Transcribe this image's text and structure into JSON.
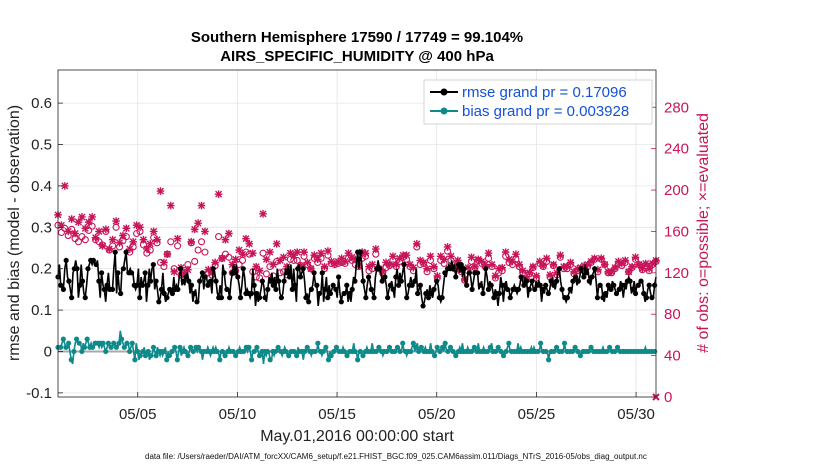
{
  "chart_data": {
    "type": "line",
    "title_line1": "Southern Hemisphere 17590 / 17749 = 99.104%",
    "title_line2": "AIRS_SPECIFIC_HUMIDITY @ 400 hPa",
    "xlabel": "May.01,2016 00:00:00 start",
    "ylabel_left": "rmse and bias (model - observation)",
    "ylabel_right": "# of obs: o=possible; ×=evaluated",
    "footer": "data file: /Users/raeder/DAI/ATM_forcXX/CAM6_setup/f.e21.FHIST_BGC.f09_025.CAM6assim.011/Diags_NTrS_2016-05/obs_diag_output.nc",
    "xticks": [
      "05/05",
      "05/10",
      "05/15",
      "05/20",
      "05/25",
      "05/30"
    ],
    "xtick_days": [
      5,
      10,
      15,
      20,
      25,
      30
    ],
    "xlim": [
      1.0,
      31.0
    ],
    "ylim_left": [
      -0.11,
      0.68
    ],
    "yticks_left": [
      "-0.1",
      "0",
      "0.1",
      "0.2",
      "0.3",
      "0.4",
      "0.5",
      "0.6"
    ],
    "ylim_right": [
      0,
      316
    ],
    "yticks_right": [
      "0",
      "40",
      "80",
      "120",
      "160",
      "200",
      "240",
      "280"
    ],
    "grid": true,
    "legend_position": "top-right",
    "series": [
      {
        "name": "rmse grand pr = 0.17096",
        "color": "#000000",
        "values": [
          0.18,
          0.21,
          0.16,
          0.16,
          0.15,
          0.2,
          0.22,
          0.18,
          0.17,
          0.15,
          0.13,
          0.19,
          0.2,
          0.22,
          0.2,
          0.13,
          0.16,
          0.21,
          0.17,
          0.14,
          0.13,
          0.16,
          0.2,
          0.21,
          0.22,
          0.21,
          0.22,
          0.21,
          0.21,
          0.22,
          0.17,
          0.13,
          0.19,
          0.16,
          0.15,
          0.12,
          0.16,
          0.19,
          0.15,
          0.15,
          0.15,
          0.2,
          0.24,
          0.14,
          0.19,
          0.15,
          0.14,
          0.2,
          0.2,
          0.22,
          0.24,
          0.19,
          0.19,
          0.2,
          0.19,
          0.19,
          0.16,
          0.15,
          0.16,
          0.2,
          0.13,
          0.18,
          0.16,
          0.17,
          0.19,
          0.12,
          0.16,
          0.2,
          0.17,
          0.2,
          0.21,
          0.15,
          0.17,
          0.15,
          0.12,
          0.13,
          0.15,
          0.19,
          0.14,
          0.12,
          0.13,
          0.14,
          0.15,
          0.14,
          0.14,
          0.18,
          0.15,
          0.16,
          0.15,
          0.18,
          0.2,
          0.16,
          0.17,
          0.16,
          0.18,
          0.19,
          0.17,
          0.14,
          0.16,
          0.12,
          0.14,
          0.15,
          0.12,
          0.12,
          0.17,
          0.18,
          0.19,
          0.15,
          0.18,
          0.18,
          0.16,
          0.17,
          0.17,
          0.14,
          0.2,
          0.19,
          0.17,
          0.14,
          0.13,
          0.16,
          0.13,
          0.21,
          0.19,
          0.16,
          0.15,
          0.15,
          0.13,
          0.17,
          0.19,
          0.21,
          0.19,
          0.21,
          0.18,
          0.16,
          0.13,
          0.16,
          0.2,
          0.18,
          0.14,
          0.15,
          0.14,
          0.13,
          0.14,
          0.2,
          0.16,
          0.11,
          0.14,
          0.12,
          0.13,
          0.15,
          0.17,
          0.16,
          0.13,
          0.12,
          0.15,
          0.18,
          0.17,
          0.19,
          0.16,
          0.18,
          0.15,
          0.2,
          0.17,
          0.14,
          0.13,
          0.14,
          0.17,
          0.2,
          0.19,
          0.21,
          0.18,
          0.21,
          0.15,
          0.2,
          0.16,
          0.12,
          0.2,
          0.21,
          0.18,
          0.19,
          0.2,
          0.17,
          0.13,
          0.14,
          0.12,
          0.15,
          0.15,
          0.16,
          0.19,
          0.16,
          0.16,
          0.11,
          0.14,
          0.14,
          0.19,
          0.12,
          0.15,
          0.18,
          0.13,
          0.16,
          0.14,
          0.15,
          0.16,
          0.15,
          0.15,
          0.13,
          0.18,
          0.14,
          0.12,
          0.14,
          0.14,
          0.14,
          0.16,
          0.12,
          0.14,
          0.12,
          0.15,
          0.18,
          0.17,
          0.21,
          0.24,
          0.2,
          0.24,
          0.21,
          0.17,
          0.15,
          0.13,
          0.16,
          0.18,
          0.17,
          0.15,
          0.14,
          0.13,
          0.18,
          0.2,
          0.22,
          0.2,
          0.19,
          0.17,
          0.18,
          0.18,
          0.16,
          0.13,
          0.15,
          0.16,
          0.17,
          0.15,
          0.13,
          0.18,
          0.2,
          0.16,
          0.19,
          0.17,
          0.19,
          0.21,
          0.16,
          0.13,
          0.14,
          0.16,
          0.18,
          0.16,
          0.16,
          0.17,
          0.2,
          0.14,
          0.15,
          0.16,
          0.13,
          0.11,
          0.12,
          0.14,
          0.15,
          0.13,
          0.16,
          0.14,
          0.13,
          0.15,
          0.16,
          0.17,
          0.16,
          0.13,
          0.12,
          0.13,
          0.16,
          0.19,
          0.18,
          0.2,
          0.21,
          0.2,
          0.22,
          0.2,
          0.21,
          0.18,
          0.2,
          0.21,
          0.19,
          0.21,
          0.18,
          0.2,
          0.17,
          0.16,
          0.19,
          0.19,
          0.18,
          0.15,
          0.17,
          0.19,
          0.19,
          0.19,
          0.15,
          0.16,
          0.17,
          0.14,
          0.16,
          0.2,
          0.18,
          0.15,
          0.17,
          0.16,
          0.15,
          0.13,
          0.15,
          0.14,
          0.11,
          0.14,
          0.18,
          0.16,
          0.12,
          0.16,
          0.17,
          0.15,
          0.15,
          0.13,
          0.14,
          0.15,
          0.16,
          0.15,
          0.14,
          0.15,
          0.16,
          0.18,
          0.17,
          0.16,
          0.18,
          0.17,
          0.13,
          0.15,
          0.16,
          0.17,
          0.15,
          0.15,
          0.17,
          0.16,
          0.17,
          0.16,
          0.12,
          0.15,
          0.14,
          0.16,
          0.15,
          0.14,
          0.15,
          0.17,
          0.18,
          0.16,
          0.15,
          0.17,
          0.19,
          0.2,
          0.17,
          0.15,
          0.13,
          0.13,
          0.12,
          0.13,
          0.14,
          0.15,
          0.14,
          0.17,
          0.18,
          0.18,
          0.16,
          0.17,
          0.18,
          0.2,
          0.19,
          0.18,
          0.21,
          0.19,
          0.2,
          0.17,
          0.16,
          0.18,
          0.19,
          0.2,
          0.17,
          0.13,
          0.16,
          0.16,
          0.16,
          0.13,
          0.12,
          0.14,
          0.13,
          0.16,
          0.15,
          0.15,
          0.17,
          0.16,
          0.15,
          0.14,
          0.14,
          0.15,
          0.17,
          0.16,
          0.13,
          0.16,
          0.15,
          0.17,
          0.18,
          0.17,
          0.14,
          0.15,
          0.17,
          0.14,
          0.16,
          0.16,
          0.17,
          0.17,
          0.17,
          0.14,
          0.12,
          0.13,
          0.15,
          0.16,
          0.14,
          0.13,
          0.13,
          0.16,
          0.18
        ]
      },
      {
        "name": "bias grand pr = 0.003928",
        "color": "#0e8a8a",
        "values": [
          0.01,
          0.01,
          0.01,
          0.02,
          0.03,
          0.02,
          0.01,
          0.01,
          0.02,
          0.0,
          -0.02,
          -0.03,
          0.0,
          0.02,
          0.03,
          0.02,
          0.02,
          0.02,
          0.0,
          0.02,
          0.01,
          0.02,
          0.03,
          0.02,
          0.01,
          0.02,
          0.01,
          0.01,
          0.02,
          0.02,
          0.02,
          0.01,
          0.02,
          0.01,
          0.02,
          0.01,
          0.0,
          0.01,
          0.02,
          0.01,
          0.01,
          0.01,
          0.02,
          0.02,
          0.01,
          0.01,
          0.02,
          0.05,
          0.03,
          0.02,
          0.01,
          0.01,
          0.02,
          0.02,
          0.0,
          0.01,
          0.02,
          0.0,
          -0.02,
          0.02,
          0.0,
          -0.02,
          -0.01,
          0.0,
          0.0,
          0.01,
          -0.01,
          0.0,
          0.0,
          -0.02,
          -0.01,
          -0.01,
          0.01,
          0.0,
          -0.01,
          0.01,
          0.0,
          -0.01,
          0.0,
          -0.01,
          0.0,
          0.01,
          -0.02,
          0.0,
          -0.01,
          -0.01,
          0.0,
          0.0,
          0.01,
          0.0,
          -0.02,
          0.0,
          0.01,
          -0.01,
          0.0,
          0.01,
          0.0,
          0.0,
          -0.01,
          0.0,
          0.01,
          0.0,
          0.0,
          0.0,
          0.01,
          0.0,
          0.01,
          0.0,
          0.0,
          -0.02,
          0.0,
          0.0,
          0.0,
          0.01,
          0.0,
          -0.01,
          0.0,
          0.01,
          0.0,
          0.01,
          0.0,
          0.0,
          -0.02,
          0.0,
          0.0,
          0.0,
          -0.01,
          0.0,
          0.0,
          0.01,
          0.0,
          0.0,
          0.0,
          0.0,
          -0.01,
          0.0,
          0.0,
          0.01,
          0.0,
          0.0,
          0.0,
          0.0,
          0.01,
          0.0,
          0.01,
          0.0,
          -0.02,
          0.0,
          0.0,
          0.0,
          0.01,
          0.0,
          -0.01,
          0.0,
          0.0,
          -0.03,
          0.0,
          -0.01,
          0.0,
          0.0,
          -0.02,
          -0.02,
          0.0,
          -0.01,
          0.0,
          0.0,
          0.01,
          0.0,
          0.0,
          -0.01,
          0.0,
          0.01,
          0.0,
          0.0,
          -0.01,
          0.0,
          0.0,
          0.0,
          0.0,
          0.0,
          -0.01,
          0.01,
          0.0,
          0.0,
          0.0,
          -0.02,
          0.0,
          0.0,
          0.01,
          0.0,
          0.0,
          -0.01,
          0.0,
          0.0,
          0.0,
          0.0,
          0.02,
          0.0,
          0.0,
          -0.01,
          0.0,
          0.0,
          0.01,
          0.0,
          -0.02,
          0.0,
          -0.01,
          0.0,
          0.0,
          0.0,
          0.01,
          0.0,
          0.0,
          0.0,
          0.0,
          0.01,
          0.0,
          0.0,
          -0.01,
          0.0,
          0.0,
          0.0,
          0.0,
          0.02,
          0.0,
          0.0,
          -0.02,
          0.0,
          0.0,
          0.0,
          -0.01,
          0.0,
          0.0,
          0.01,
          0.0,
          0.0,
          0.0,
          0.02,
          0.0,
          0.0,
          0.0,
          0.0,
          0.01,
          0.0,
          0.0,
          -0.01,
          0.0,
          0.0,
          0.0,
          0.0,
          0.01,
          0.0,
          0.0,
          0.0,
          0.0,
          0.0,
          0.01,
          0.01,
          0.0,
          0.0,
          0.02,
          0.0,
          0.0,
          -0.01,
          0.0,
          0.0,
          0.0,
          0.01,
          0.02,
          0.0,
          0.01,
          0.02,
          0.0,
          0.0,
          0.01,
          0.0,
          0.0,
          0.01,
          0.0,
          0.0,
          0.0,
          0.02,
          0.0,
          0.0,
          -0.01,
          0.0,
          0.01,
          0.0,
          0.0,
          0.0,
          0.01,
          0.0,
          0.02,
          0.0,
          0.0,
          0.0,
          0.01,
          0.0,
          0.0,
          0.0,
          -0.01,
          0.0,
          0.0,
          0.01,
          0.0,
          0.02,
          0.0,
          0.0,
          0.0,
          0.01,
          0.0,
          0.0,
          0.0,
          0.0,
          0.01,
          0.0,
          0.0,
          0.02,
          0.0,
          0.0,
          0.0,
          0.01,
          0.0,
          0.0,
          0.0,
          0.0,
          0.01,
          0.02,
          0.0,
          0.0,
          0.0,
          0.0,
          0.01,
          0.0,
          0.0,
          0.0,
          -0.01,
          0.0,
          0.0,
          0.01,
          0.02,
          0.0,
          0.0,
          0.0,
          0.0,
          0.0,
          0.0,
          0.02,
          0.0,
          0.01,
          0.0,
          0.0,
          0.0,
          0.0,
          0.0,
          0.0,
          0.0,
          0.01,
          0.0,
          0.01,
          0.0,
          0.0,
          0.0,
          0.0,
          0.02,
          0.0,
          0.0,
          0.0,
          0.0,
          0.0,
          -0.02,
          0.0,
          0.0,
          0.0,
          0.0,
          0.0,
          0.01,
          0.0,
          0.0,
          0.0,
          0.0,
          0.0,
          0.02,
          0.0,
          0.0,
          0.0,
          0.0,
          0.0,
          0.0,
          0.0,
          0.01,
          0.0,
          0.0,
          0.0,
          -0.01,
          0.0,
          0.0,
          0.0,
          0.0,
          0.0,
          0.0,
          0.0,
          0.01,
          0.0,
          0.0,
          0.0,
          0.0,
          0.0,
          0.0,
          0.0,
          0.0,
          0.01,
          0.0,
          0.0,
          0.0,
          0.0,
          0.01,
          0.0,
          0.0,
          0.0,
          0.0,
          0.0,
          0.01,
          0.0,
          0.0,
          0.0,
          0.0,
          0.0,
          0.0,
          0.0,
          0.0,
          0.0,
          0.0,
          0.0,
          0.0,
          0.0,
          0.0,
          0.0,
          0.0,
          0.0,
          0.0,
          0.0,
          0.0,
          0.01,
          0.0,
          0.0,
          0.0,
          0.0,
          0.0,
          0.0,
          0.0,
          0.0
        ]
      }
    ],
    "obs_possible": [
      166,
      159,
      163,
      156,
      162,
      153,
      150,
      155,
      152,
      161,
      165,
      152,
      150,
      147,
      160,
      142,
      146,
      164,
      145,
      151,
      155,
      140,
      145,
      158,
      160,
      147,
      139,
      142,
      154,
      149,
      130,
      126,
      138,
      150,
      124,
      146,
      118,
      119,
      128,
      149,
      131,
      142,
      150,
      140,
      120,
      118,
      127,
      155,
      134,
      138,
      135,
      120,
      122,
      128,
      132,
      140,
      138,
      121,
      116,
      115,
      139,
      119,
      126,
      117,
      131,
      120,
      121,
      118,
      133,
      132,
      132,
      127,
      136,
      128,
      124,
      134,
      130,
      134,
      124,
      137,
      129,
      128,
      129,
      130,
      129,
      134,
      132,
      128,
      126,
      134,
      136,
      122,
      124,
      138,
      124,
      120,
      125,
      127,
      132,
      126,
      131,
      135,
      133,
      126,
      122,
      145,
      128,
      129,
      121,
      132,
      124,
      115,
      132,
      129,
      141,
      132,
      124,
      130,
      121,
      113,
      122,
      131,
      125,
      132,
      129,
      126,
      134,
      126,
      115,
      120,
      122,
      136,
      130,
      128,
      133,
      126,
      120,
      114,
      119,
      125,
      115,
      129,
      126,
      131,
      116,
      127,
      118,
      135,
      124,
      124,
      128,
      119,
      122,
      123,
      125,
      126,
      130,
      133,
      121,
      133,
      128,
      120,
      120,
      124,
      129,
      127,
      130,
      121,
      125,
      133,
      128,
      123,
      127,
      122,
      128,
      131
    ],
    "obs_evaluated": [
      176,
      166,
      204,
      160,
      172,
      158,
      169,
      174,
      163,
      169,
      174,
      154,
      160,
      146,
      162,
      143,
      152,
      170,
      149,
      156,
      163,
      143,
      150,
      166,
      164,
      152,
      143,
      148,
      160,
      152,
      199,
      130,
      138,
      185,
      121,
      153,
      125,
      119,
      123,
      150,
      162,
      168,
      185,
      160,
      123,
      121,
      130,
      196,
      134,
      152,
      158,
      128,
      133,
      142,
      138,
      153,
      148,
      139,
      126,
      122,
      177,
      133,
      140,
      128,
      148,
      132,
      135,
      126,
      139,
      137,
      140,
      127,
      140,
      130,
      124,
      137,
      133,
      139,
      126,
      141,
      131,
      129,
      131,
      134,
      131,
      139,
      135,
      133,
      127,
      140,
      139,
      126,
      128,
      143,
      124,
      121,
      130,
      128,
      136,
      128,
      134,
      137,
      137,
      128,
      125,
      148,
      132,
      130,
      124,
      136,
      126,
      117,
      136,
      133,
      145,
      136,
      126,
      132,
      124,
      114,
      125,
      135,
      126,
      133,
      131,
      128,
      139,
      128,
      117,
      124,
      125,
      140,
      133,
      131,
      138,
      128,
      122,
      114,
      120,
      126,
      117,
      131,
      127,
      134,
      118,
      128,
      120,
      137,
      126,
      126,
      130,
      121,
      124,
      125,
      127,
      128,
      131,
      134,
      123,
      134,
      128,
      121,
      121,
      125,
      131,
      129,
      132,
      121,
      126,
      135,
      128,
      124,
      129,
      124,
      129,
      132
    ]
  }
}
